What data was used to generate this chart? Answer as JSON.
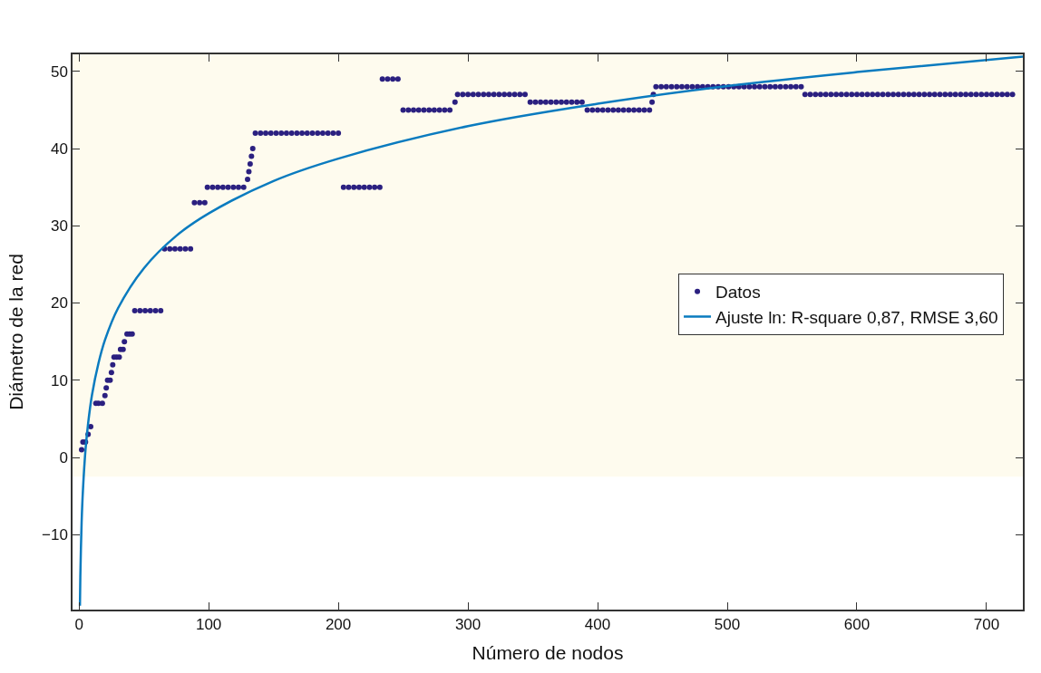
{
  "chart_data": {
    "type": "scatter",
    "xlabel": "Número de nodos",
    "ylabel": "Diámetro de la red",
    "xlim": [
      -5,
      728
    ],
    "ylim": [
      -19.7,
      52.2
    ],
    "xticks": [
      0,
      100,
      200,
      300,
      400,
      500,
      600,
      700
    ],
    "yticks": [
      -10,
      0,
      10,
      20,
      30,
      40,
      50
    ],
    "grid": false,
    "legend": "right",
    "bands": [
      {
        "axis": "y",
        "from": -2.5,
        "to": 52.2,
        "color": "#fefbee"
      }
    ],
    "series": [
      {
        "name": "Datos",
        "marker": "circle",
        "color": "#2b2080",
        "x": [
          2,
          3,
          5,
          7,
          9,
          13,
          15,
          18,
          20,
          21,
          22,
          24,
          25,
          26,
          27,
          29,
          31,
          32,
          34,
          35,
          37,
          39,
          41,
          43,
          47,
          51,
          55,
          59,
          63,
          66,
          70,
          74,
          78,
          82,
          86,
          89,
          93,
          97,
          99,
          103,
          107,
          111,
          115,
          119,
          123,
          127,
          130,
          131,
          132,
          133,
          134,
          136,
          140,
          144,
          148,
          152,
          156,
          160,
          164,
          168,
          172,
          176,
          180,
          184,
          188,
          192,
          196,
          200,
          204,
          208,
          212,
          216,
          220,
          224,
          228,
          232,
          234,
          238,
          242,
          246,
          250,
          254,
          258,
          262,
          266,
          270,
          274,
          278,
          282,
          286,
          290,
          292,
          296,
          300,
          304,
          308,
          312,
          316,
          320,
          324,
          328,
          332,
          336,
          340,
          344,
          348,
          352,
          356,
          360,
          364,
          368,
          372,
          376,
          380,
          384,
          388,
          392,
          396,
          400,
          404,
          408,
          412,
          416,
          420,
          424,
          428,
          432,
          436,
          440,
          442,
          443,
          445,
          449,
          453,
          457,
          461,
          465,
          469,
          473,
          477,
          481,
          485,
          489,
          493,
          497,
          501,
          505,
          509,
          513,
          517,
          521,
          525,
          529,
          533,
          537,
          541,
          545,
          549,
          553,
          557,
          560,
          564,
          568,
          572,
          576,
          580,
          584,
          588,
          592,
          596,
          600,
          604,
          608,
          612,
          616,
          620,
          624,
          628,
          632,
          636,
          640,
          644,
          648,
          652,
          656,
          660,
          664,
          668,
          672,
          676,
          680,
          684,
          688,
          692,
          696,
          700,
          704,
          708,
          712,
          716,
          720
        ],
        "values": [
          1,
          2,
          2,
          3,
          4,
          7,
          7,
          7,
          8,
          9,
          10,
          10,
          11,
          12,
          13,
          13,
          13,
          14,
          14,
          15,
          16,
          16,
          16,
          19,
          19,
          19,
          19,
          19,
          19,
          27,
          27,
          27,
          27,
          27,
          27,
          33,
          33,
          33,
          35,
          35,
          35,
          35,
          35,
          35,
          35,
          35,
          36,
          37,
          38,
          39,
          40,
          42,
          42,
          42,
          42,
          42,
          42,
          42,
          42,
          42,
          42,
          42,
          42,
          42,
          42,
          42,
          42,
          42,
          35,
          35,
          35,
          35,
          35,
          35,
          35,
          35,
          49,
          49,
          49,
          49,
          45,
          45,
          45,
          45,
          45,
          45,
          45,
          45,
          45,
          45,
          46,
          47,
          47,
          47,
          47,
          47,
          47,
          47,
          47,
          47,
          47,
          47,
          47,
          47,
          47,
          46,
          46,
          46,
          46,
          46,
          46,
          46,
          46,
          46,
          46,
          46,
          45,
          45,
          45,
          45,
          45,
          45,
          45,
          45,
          45,
          45,
          45,
          45,
          45,
          46,
          47,
          48,
          48,
          48,
          48,
          48,
          48,
          48,
          48,
          48,
          48,
          48,
          48,
          48,
          48,
          48,
          48,
          48,
          48,
          48,
          48,
          48,
          48,
          48,
          48,
          48,
          48,
          48,
          48,
          48,
          47,
          47,
          47,
          47,
          47,
          47,
          47,
          47,
          47,
          47,
          47,
          47,
          47,
          47,
          47,
          47,
          47,
          47,
          47,
          47,
          47,
          47,
          47,
          47,
          47,
          47,
          47,
          47,
          47,
          47,
          47,
          47,
          47,
          47,
          47,
          47,
          47,
          47,
          47,
          47,
          47
        ]
      },
      {
        "name": "Ajuste ln: R-square 0,87, RMSE 3,60",
        "type": "line",
        "line_style": "solid",
        "color": "#0a7bbf",
        "x": [
          0.7,
          1,
          2,
          3,
          5,
          7,
          10,
          15,
          20,
          30,
          50,
          75,
          100,
          150,
          200,
          300,
          400,
          500,
          600,
          728
        ],
        "values": [
          -19.2,
          -15.5,
          -8.4,
          -4.3,
          1.0,
          4.4,
          8.1,
          12.2,
          15.2,
          19.3,
          24.5,
          28.7,
          31.6,
          35.8,
          38.7,
          42.9,
          45.8,
          48.1,
          49.9,
          51.9
        ]
      }
    ]
  }
}
